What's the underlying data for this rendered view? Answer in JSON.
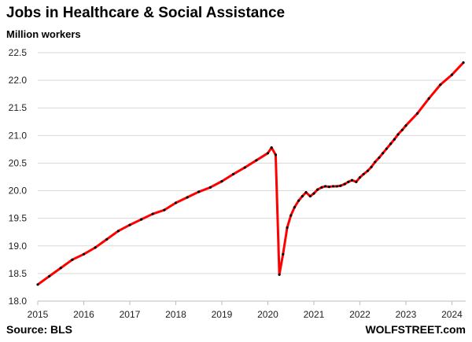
{
  "chart_data": {
    "type": "line",
    "title": "Jobs in Healthcare & Social Assistance",
    "subtitle": "Million workers",
    "ylabel": "",
    "xlabel": "",
    "xlim": [
      2015,
      2024.3
    ],
    "ylim": [
      18.0,
      22.5
    ],
    "y_ticks": [
      "22.5",
      "22.0",
      "21.5",
      "21.0",
      "20.5",
      "20.0",
      "19.5",
      "19.0",
      "18.5",
      "18.0"
    ],
    "x_ticks": [
      "2015",
      "2016",
      "2017",
      "2018",
      "2019",
      "2020",
      "2021",
      "2022",
      "2023",
      "2024"
    ],
    "grid": true,
    "line_color": "#ff0000",
    "marker_color": "#000000",
    "series": [
      {
        "x": [
          2015.0,
          2015.25,
          2015.5,
          2015.75,
          2016.0,
          2016.25,
          2016.5,
          2016.75,
          2017.0,
          2017.25,
          2017.5,
          2017.75,
          2018.0,
          2018.25,
          2018.5,
          2018.75,
          2019.0,
          2019.25,
          2019.5,
          2019.75,
          2020.0,
          2020.08,
          2020.17,
          2020.25,
          2020.33,
          2020.42,
          2020.5,
          2020.58,
          2020.67,
          2020.75,
          2020.83,
          2020.92,
          2021.0,
          2021.08,
          2021.17,
          2021.25,
          2021.33,
          2021.42,
          2021.5,
          2021.58,
          2021.67,
          2021.75,
          2021.83,
          2021.92,
          2022.0,
          2022.08,
          2022.17,
          2022.25,
          2022.33,
          2022.42,
          2022.5,
          2022.58,
          2022.67,
          2022.75,
          2022.83,
          2022.92,
          2023.0,
          2023.25,
          2023.5,
          2023.75,
          2024.0,
          2024.25
        ],
        "values": [
          18.3,
          18.45,
          18.6,
          18.75,
          18.85,
          18.97,
          19.12,
          19.27,
          19.38,
          19.48,
          19.58,
          19.65,
          19.78,
          19.88,
          19.98,
          20.06,
          20.17,
          20.3,
          20.42,
          20.55,
          20.68,
          20.78,
          20.65,
          18.48,
          18.85,
          19.33,
          19.55,
          19.7,
          19.82,
          19.9,
          19.97,
          19.9,
          19.95,
          20.02,
          20.06,
          20.08,
          20.07,
          20.08,
          20.08,
          20.09,
          20.12,
          20.16,
          20.19,
          20.16,
          20.24,
          20.3,
          20.36,
          20.43,
          20.52,
          20.6,
          20.68,
          20.76,
          20.85,
          20.93,
          21.02,
          21.1,
          21.18,
          21.4,
          21.67,
          21.92,
          22.1,
          22.32
        ]
      }
    ],
    "source": "Source: BLS",
    "brand": "WOLFSTREET.com"
  }
}
